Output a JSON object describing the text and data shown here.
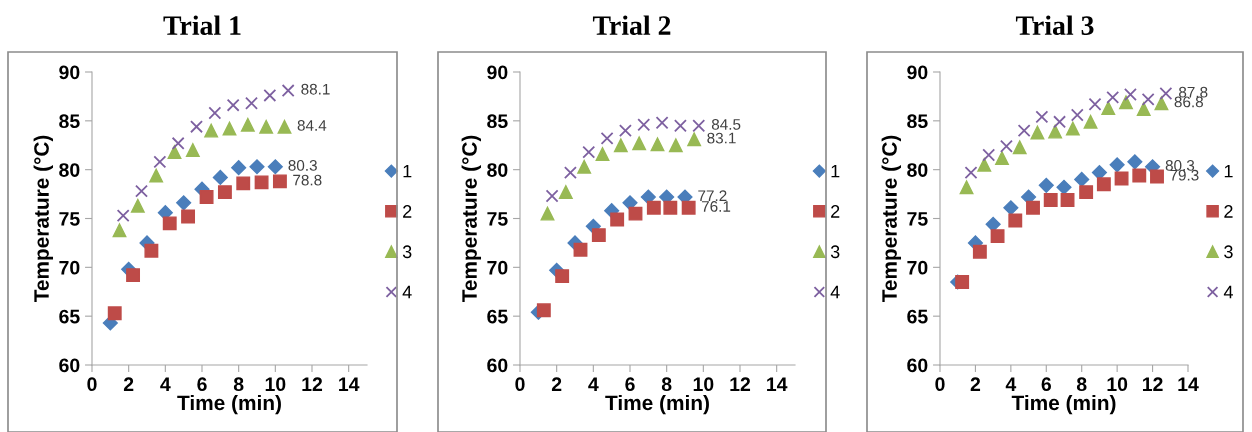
{
  "chart_data": [
    {
      "type": "scatter",
      "title": "Trial 1",
      "xlabel": "Time (min)",
      "ylabel": "Temperature (°C)",
      "xlim": [
        0,
        15
      ],
      "xticks": [
        0,
        2,
        4,
        6,
        8,
        10,
        12,
        14
      ],
      "ylim": [
        60,
        90
      ],
      "yticks": [
        60,
        65,
        70,
        75,
        80,
        85,
        90
      ],
      "legend": "right",
      "series": [
        {
          "name": "1",
          "color": "#4a7ebb",
          "marker": "diamond",
          "x": [
            1,
            2,
            3,
            4,
            5,
            6,
            7,
            8,
            9,
            10
          ],
          "values": [
            64.3,
            69.8,
            72.5,
            75.6,
            76.6,
            78.0,
            79.2,
            80.2,
            80.3,
            80.3
          ]
        },
        {
          "name": "2",
          "color": "#be4b48",
          "marker": "square",
          "x": [
            1.24,
            2.24,
            3.24,
            4.24,
            5.24,
            6.25,
            7.25,
            8.25,
            9.25,
            10.25
          ],
          "values": [
            65.3,
            69.2,
            71.7,
            74.5,
            75.2,
            77.2,
            77.7,
            78.6,
            78.7,
            78.8
          ]
        },
        {
          "name": "3",
          "color": "#98b954",
          "marker": "triangle",
          "x": [
            1.5,
            2.5,
            3.5,
            4.5,
            5.5,
            6.5,
            7.5,
            8.5,
            9.5,
            10.5
          ],
          "values": [
            73.8,
            76.3,
            79.4,
            81.8,
            82.0,
            84.0,
            84.2,
            84.6,
            84.4,
            84.4
          ]
        },
        {
          "name": "4",
          "color": "#7d60a0",
          "marker": "cross",
          "x": [
            1.7,
            2.7,
            3.7,
            4.7,
            5.7,
            6.7,
            7.7,
            8.7,
            9.7,
            10.7
          ],
          "values": [
            75.3,
            77.8,
            80.8,
            82.7,
            84.4,
            85.8,
            86.6,
            86.8,
            87.6,
            88.1
          ]
        }
      ],
      "annotations": [
        {
          "text": "88.1",
          "x": 10.7,
          "y": 88.1
        },
        {
          "text": "84.4",
          "x": 10.5,
          "y": 84.4
        },
        {
          "text": "80.3",
          "x": 10,
          "y": 80.3
        },
        {
          "text": "78.8",
          "x": 10.25,
          "y": 78.8
        }
      ]
    },
    {
      "type": "scatter",
      "title": "Trial 2",
      "xlabel": "Time (min)",
      "ylabel": "Temperature (°C)",
      "xlim": [
        0,
        15
      ],
      "xticks": [
        0,
        2,
        4,
        6,
        8,
        10,
        12,
        14
      ],
      "ylim": [
        60,
        90
      ],
      "yticks": [
        60,
        65,
        70,
        75,
        80,
        85,
        90
      ],
      "legend": "right",
      "series": [
        {
          "name": "1",
          "color": "#4a7ebb",
          "marker": "diamond",
          "x": [
            1,
            2,
            3,
            4,
            5,
            6,
            7,
            8,
            9
          ],
          "values": [
            65.4,
            69.7,
            72.5,
            74.2,
            75.8,
            76.6,
            77.2,
            77.2,
            77.2
          ]
        },
        {
          "name": "2",
          "color": "#be4b48",
          "marker": "square",
          "x": [
            1.3,
            2.3,
            3.3,
            4.3,
            5.3,
            6.3,
            7.3,
            8.2,
            9.2
          ],
          "values": [
            65.6,
            69.1,
            71.8,
            73.3,
            74.9,
            75.5,
            76.1,
            76.1,
            76.1
          ]
        },
        {
          "name": "3",
          "color": "#98b954",
          "marker": "triangle",
          "x": [
            1.5,
            2.5,
            3.5,
            4.5,
            5.5,
            6.5,
            7.5,
            8.5,
            9.5
          ],
          "values": [
            75.5,
            77.7,
            80.3,
            81.6,
            82.5,
            82.7,
            82.6,
            82.5,
            83.1
          ]
        },
        {
          "name": "4",
          "color": "#7d60a0",
          "marker": "cross",
          "x": [
            1.75,
            2.75,
            3.75,
            4.75,
            5.75,
            6.75,
            7.75,
            8.75,
            9.75
          ],
          "values": [
            77.3,
            79.7,
            81.8,
            83.2,
            84.0,
            84.6,
            84.8,
            84.5,
            84.5
          ]
        }
      ],
      "annotations": [
        {
          "text": "84.5",
          "x": 9.75,
          "y": 84.5
        },
        {
          "text": "83.1",
          "x": 9.5,
          "y": 83.1
        },
        {
          "text": "77.2",
          "x": 9,
          "y": 77.2
        },
        {
          "text": "76.1",
          "x": 9.2,
          "y": 76.1
        }
      ]
    },
    {
      "type": "scatter",
      "title": "Trial 3",
      "xlabel": "Time (min)",
      "ylabel": "Temperature (°C)",
      "xlim": [
        0,
        14
      ],
      "xticks": [
        0,
        2,
        4,
        6,
        8,
        10,
        12,
        14
      ],
      "ylim": [
        60,
        90
      ],
      "yticks": [
        60,
        65,
        70,
        75,
        80,
        85,
        90
      ],
      "legend": "right",
      "series": [
        {
          "name": "1",
          "color": "#4a7ebb",
          "marker": "diamond",
          "x": [
            1,
            2,
            3,
            4,
            5,
            6,
            7,
            8,
            9,
            10,
            11,
            12
          ],
          "values": [
            68.5,
            72.5,
            74.4,
            76.1,
            77.2,
            78.4,
            78.2,
            79.0,
            79.7,
            80.5,
            80.8,
            80.3
          ]
        },
        {
          "name": "2",
          "color": "#be4b48",
          "marker": "square",
          "x": [
            1.25,
            2.25,
            3.25,
            4.25,
            5.25,
            6.25,
            7.2,
            8.25,
            9.25,
            10.25,
            11.25,
            12.25
          ],
          "values": [
            68.5,
            71.6,
            73.2,
            74.8,
            76.1,
            76.9,
            76.9,
            77.7,
            78.5,
            79.1,
            79.4,
            79.3
          ]
        },
        {
          "name": "3",
          "color": "#98b954",
          "marker": "triangle",
          "x": [
            1.5,
            2.5,
            3.5,
            4.5,
            5.5,
            6.5,
            7.5,
            8.5,
            9.5,
            10.5,
            11.5,
            12.5
          ],
          "values": [
            78.2,
            80.5,
            81.2,
            82.3,
            83.8,
            83.9,
            84.2,
            84.9,
            86.3,
            86.9,
            86.2,
            86.8
          ]
        },
        {
          "name": "4",
          "color": "#7d60a0",
          "marker": "cross",
          "x": [
            1.75,
            2.75,
            3.75,
            4.75,
            5.75,
            6.75,
            7.75,
            8.75,
            9.75,
            10.75,
            11.75,
            12.75
          ],
          "values": [
            79.7,
            81.5,
            82.4,
            84.0,
            85.4,
            84.9,
            85.6,
            86.7,
            87.4,
            87.7,
            87.2,
            87.8
          ]
        }
      ],
      "annotations": [
        {
          "text": "87.8",
          "x": 12.75,
          "y": 87.8
        },
        {
          "text": "86.8",
          "x": 12.5,
          "y": 86.8
        },
        {
          "text": "80.3",
          "x": 12,
          "y": 80.3
        },
        {
          "text": "79.3",
          "x": 12.25,
          "y": 79.3
        }
      ]
    }
  ]
}
